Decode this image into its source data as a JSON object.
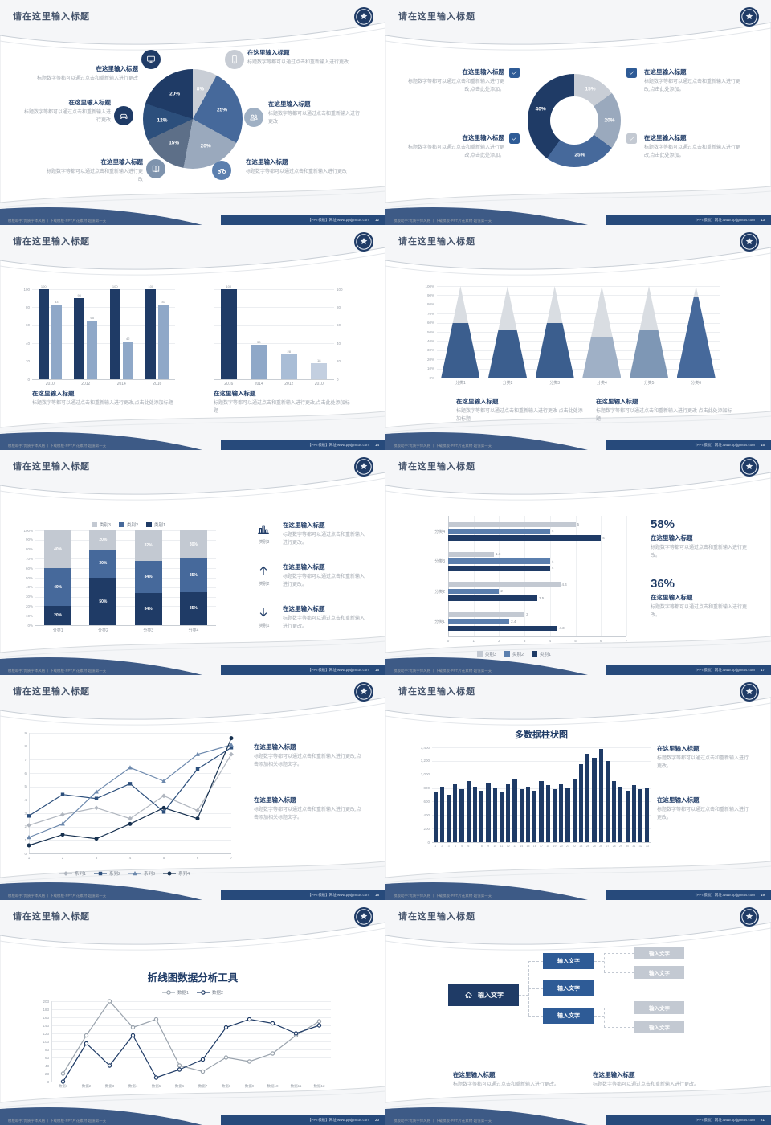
{
  "chrome": {
    "title": "请在这里输入标题",
    "footer_left": "模板助手:优质字体风格 丨下载模板·PPT片花素材·超值第一支",
    "footer_right": "【PPT模板】网址:www.pptjgmtus.com",
    "page_numbers": [
      "12",
      "13",
      "14",
      "15",
      "16",
      "17",
      "18",
      "19",
      "20",
      "21"
    ]
  },
  "palette": {
    "navy": "#1f3b66",
    "steel": "#46699b",
    "light_steel": "#8fa8c8",
    "gray": "#c3c9d2",
    "text_gray": "#a4aab2"
  },
  "slides": [
    {
      "id": "s1",
      "name": "pie-infographic-slide",
      "items": [
        {
          "title": "在这里输入标题",
          "text": "标题数字等都可以通过点击和重新输入进行更改",
          "icon": "monitor-icon",
          "color": "#1f3b66"
        },
        {
          "title": "在这里输入标题",
          "text": "标题数字等都可以通过点击和重新输入进行更改",
          "icon": "car-icon",
          "color": "#1f3b66"
        },
        {
          "title": "在这里输入标题",
          "text": "标题数字等都可以通过点击和重新输入进行更改",
          "icon": "book-icon",
          "color": "#7e93ad"
        },
        {
          "title": "在这里输入标题",
          "text": "标题数字等都可以通过点击和重新输入进行更改",
          "icon": "phone-icon",
          "color": "#c7ccd4"
        },
        {
          "title": "在这里输入标题",
          "text": "标题数字等都可以通过点击和重新输入进行更改",
          "icon": "users-icon",
          "color": "#9fb0c4"
        },
        {
          "title": "在这里输入标题",
          "text": "标题数字等都可以通过点击和重新输入进行更改",
          "icon": "bike-icon",
          "color": "#5b7fae"
        }
      ],
      "chart_data": {
        "type": "pie",
        "values": [
          8,
          25,
          20,
          15,
          12,
          20
        ],
        "labels": [
          "8%",
          "25%",
          "20%",
          "15%",
          "12%",
          "20%"
        ],
        "colors": [
          "#c9ced6",
          "#46699b",
          "#9aa9bd",
          "#5d6f88",
          "#2c4f7c",
          "#1f3b66"
        ]
      }
    },
    {
      "id": "s2",
      "name": "donut-checklist-slide",
      "items": [
        {
          "title": "在这里输入标题",
          "text": "标题数字等都可以通过点击和重新输入进行更改,点击此处添加。",
          "check_color": "#2e5b96"
        },
        {
          "title": "在这里输入标题",
          "text": "标题数字等都可以通过点击和重新输入进行更改,点击此处添加。",
          "check_color": "#2e5b96"
        },
        {
          "title": "在这里输入标题",
          "text": "标题数字等都可以通过点击和重新输入进行更改,点击此处添加。",
          "check_color": "#2e5b96"
        },
        {
          "title": "在这里输入标题",
          "text": "标题数字等都可以通过点击和重新输入进行更改,点击此处添加。",
          "check_color": "#c3c9d2"
        }
      ],
      "chart_data": {
        "type": "donut",
        "values": [
          15,
          20,
          25,
          40
        ],
        "labels": [
          "15%",
          "20%",
          "25%",
          "40%"
        ],
        "colors": [
          "#c9ced6",
          "#9aa9bd",
          "#46699b",
          "#1f3b66"
        ]
      }
    },
    {
      "id": "s3",
      "name": "dual-bar-chart-slide",
      "sections": [
        {
          "title": "在这里输入标题",
          "text": "标题数字等都可以通过点击和重新输入进行更改,点击此处添加标题"
        },
        {
          "title": "在这里输入标题",
          "text": "标题数字等都可以通过点击和重新输入进行更改,点击此处添加标题"
        }
      ],
      "chart_data": [
        {
          "type": "bar",
          "categories": [
            "2010",
            "2012",
            "2014",
            "2016"
          ],
          "series": [
            {
              "name": "系列1",
              "color": "#1f3b66",
              "values": [
                100,
                90,
                100,
                100
              ]
            },
            {
              "name": "系列2",
              "color": "#8fa8c8",
              "values": [
                83,
                65,
                42,
                83
              ]
            }
          ],
          "ylim": [
            0,
            100
          ],
          "yticks": [
            0,
            20,
            40,
            60,
            80,
            100
          ]
        },
        {
          "type": "bar",
          "categories": [
            "2016",
            "2014",
            "2012",
            "2010"
          ],
          "values": [
            100,
            38,
            28,
            18
          ],
          "colors": [
            "#1f3b66",
            "#8fa8c8",
            "#a9bdd6",
            "#c3cfe0"
          ],
          "ylim": [
            0,
            100
          ],
          "yticks": [
            0,
            20,
            40,
            60,
            80,
            100
          ]
        }
      ]
    },
    {
      "id": "s4",
      "name": "pyramid-chart-slide",
      "sections": [
        {
          "title": "在这里输入标题",
          "text": "标题数字等都可以通过点击和重新输入进行更改 点击此处添加标题"
        },
        {
          "title": "在这里输入标题",
          "text": "标题数字等都可以通过点击和重新输入进行更改 点击此处添加标题"
        }
      ],
      "chart_data": {
        "type": "pyramid",
        "categories": [
          "分类1",
          "分类2",
          "分类3",
          "分类4",
          "分类5",
          "分类6"
        ],
        "fill_pct": [
          60,
          52,
          60,
          45,
          52,
          88
        ],
        "fill_colors": [
          "#3b5e8e",
          "#3b5e8e",
          "#3b5e8e",
          "#9fb0c6",
          "#7e97b5",
          "#46699b"
        ],
        "base_color": "#d9dde2",
        "yticks": [
          "0%",
          "10%",
          "20%",
          "30%",
          "40%",
          "50%",
          "60%",
          "70%",
          "80%",
          "90%",
          "100%"
        ]
      }
    },
    {
      "id": "s5",
      "name": "stacked-bar-slide",
      "legend": [
        "类别3",
        "类别2",
        "类别1"
      ],
      "items": [
        {
          "label": "类别3",
          "icon": "chart-icon",
          "title": "在这里输入标题",
          "text": "标题数字等都可以通过点击和重新输入进行更改。"
        },
        {
          "label": "类别2",
          "icon": "arrow-up-icon",
          "title": "在这里输入标题",
          "text": "标题数字等都可以通过点击和重新输入进行更改。"
        },
        {
          "label": "类别1",
          "icon": "arrow-down-icon",
          "title": "在这里输入标题",
          "text": "标题数字等都可以通过点击和重新输入进行更改。"
        }
      ],
      "chart_data": {
        "type": "stacked-bar",
        "categories": [
          "分类1",
          "分类2",
          "分类3",
          "分类4"
        ],
        "series": [
          {
            "name": "类别1",
            "color": "#1f3b66",
            "values": [
              20,
              50,
              34,
              35
            ]
          },
          {
            "name": "类别2",
            "color": "#46699b",
            "values": [
              40,
              30,
              34,
              35
            ]
          },
          {
            "name": "类别3",
            "color": "#c3c9d2",
            "values": [
              40,
              20,
              32,
              30
            ]
          }
        ],
        "yticks": [
          "0%",
          "10%",
          "20%",
          "30%",
          "40%",
          "50%",
          "60%",
          "70%",
          "80%",
          "90%",
          "100%"
        ]
      }
    },
    {
      "id": "s6",
      "name": "hbar-stats-slide",
      "legend": [
        "类别3",
        "类别2",
        "类别1"
      ],
      "stats": [
        {
          "value": "58%",
          "title": "在这里输入标题",
          "text": "标题数字等都可以通过点击和重新输入进行更改。"
        },
        {
          "value": "36%",
          "title": "在这里输入标题",
          "text": "标题数字等都可以通过点击和重新输入进行更改。"
        }
      ],
      "chart_data": {
        "type": "hbar",
        "categories": [
          "分类1",
          "分类2",
          "分类3",
          "分类4"
        ],
        "series": [
          {
            "name": "类别1",
            "color": "#1f3b66",
            "values": [
              4.3,
              3.5,
              4,
              6
            ]
          },
          {
            "name": "类别2",
            "color": "#5b7fae",
            "values": [
              2.4,
              2,
              4,
              4
            ]
          },
          {
            "name": "类别3",
            "color": "#c3c9d2",
            "values": [
              3,
              4.4,
              1.8,
              5
            ]
          }
        ],
        "xticks": [
          0,
          1,
          2,
          3,
          4,
          5,
          6,
          7
        ],
        "xlim": [
          0,
          7
        ]
      }
    },
    {
      "id": "s7",
      "name": "multi-line-chart-slide",
      "sections": [
        {
          "title": "在这里输入标题",
          "text": "标题数字等都可以通过点击和重新输入进行更改,点击添加相关标题文字。"
        },
        {
          "title": "在这里输入标题",
          "text": "标题数字等都可以通过点击和重新输入进行更改,点击添加相关标题文字。"
        }
      ],
      "chart_data": {
        "type": "line",
        "x": [
          1,
          2,
          3,
          4,
          5,
          6,
          7
        ],
        "ylim": [
          0,
          9
        ],
        "yticks": [
          0,
          1,
          2,
          3,
          4,
          5,
          6,
          7,
          8,
          9
        ],
        "series": [
          {
            "name": "系列1",
            "color": "#b0b6bf",
            "marker": "diamond",
            "values": [
              2.1,
              2.9,
              3.4,
              2.6,
              4.3,
              3.2,
              7.4
            ]
          },
          {
            "name": "系列2",
            "color": "#2c4f7c",
            "marker": "square",
            "values": [
              2.8,
              4.4,
              4.1,
              5.2,
              3.1,
              6.3,
              7.9
            ]
          },
          {
            "name": "系列3",
            "color": "#6d89ad",
            "marker": "triangle",
            "values": [
              1.2,
              2.2,
              4.6,
              6.4,
              5.4,
              7.4,
              8.1
            ]
          },
          {
            "name": "系列4",
            "color": "#16304f",
            "marker": "circle",
            "values": [
              0.6,
              1.4,
              1.1,
              2.2,
              3.4,
              2.6,
              8.6
            ]
          }
        ]
      }
    },
    {
      "id": "s8",
      "name": "multi-column-chart-slide",
      "sections": [
        {
          "title": "在这里输入标题",
          "text": "标题数字等都可以通过点击和重新输入进行更改。"
        },
        {
          "title": "在这里输入标题",
          "text": "标题数字等都可以通过点击和重新输入进行更改。"
        }
      ],
      "chart_data": {
        "type": "column",
        "title": "多数据柱状图",
        "color": "#1f3b66",
        "ylim": [
          0,
          1400
        ],
        "yticks": [
          "0",
          "200",
          "400",
          "600",
          "800",
          "1,000",
          "1,200",
          "1,400"
        ],
        "x_labels": [
          "1",
          "2",
          "3",
          "4",
          "5",
          "6",
          "7",
          "8",
          "9",
          "10",
          "11",
          "12",
          "13",
          "14",
          "15",
          "16",
          "17",
          "18",
          "19",
          "20",
          "21",
          "22",
          "23",
          "24",
          "25",
          "26",
          "27",
          "28",
          "29",
          "30",
          "31",
          "32",
          "33"
        ],
        "values": [
          750,
          820,
          700,
          860,
          780,
          900,
          820,
          760,
          880,
          800,
          740,
          860,
          920,
          780,
          820,
          760,
          900,
          840,
          780,
          860,
          800,
          920,
          1150,
          1300,
          1250,
          1380,
          1200,
          900,
          820,
          760,
          840,
          780,
          800
        ]
      }
    },
    {
      "id": "s9",
      "name": "line-analysis-slide",
      "chart_data": {
        "type": "line",
        "title": "折线图数据分析工具",
        "ylim": [
          3,
          203
        ],
        "categories": [
          "数据1",
          "数据2",
          "数据3",
          "数据4",
          "数据5",
          "数据6",
          "数据7",
          "数据8",
          "数据9",
          "数据10",
          "数据11",
          "数据12"
        ],
        "yticks": [
          203,
          183,
          163,
          143,
          123,
          103,
          83,
          63,
          43,
          23,
          3
        ],
        "series": [
          {
            "name": "数据1",
            "color": "#9aa3ad",
            "marker": "circle",
            "values": [
              23,
              118,
              203,
              138,
              158,
              43,
              28,
              63,
              53,
              73,
              118,
              153
            ]
          },
          {
            "name": "数据2",
            "color": "#1f3b66",
            "marker": "circle",
            "values": [
              3,
              98,
              43,
              118,
              13,
              33,
              58,
              138,
              158,
              148,
              123,
              143
            ]
          }
        ]
      }
    },
    {
      "id": "s10",
      "name": "hierarchy-diagram-slide",
      "root": {
        "label": "输入文字",
        "icon": "home-icon",
        "color": "#1f3b66"
      },
      "branches": [
        {
          "label": "输入文字"
        },
        {
          "label": "输入文字"
        },
        {
          "label": "输入文字"
        }
      ],
      "leaves": [
        {
          "label": "输入文字"
        },
        {
          "label": "输入文字"
        },
        {
          "label": "输入文字"
        },
        {
          "label": "输入文字"
        }
      ],
      "branch_color": "#2e5b96",
      "leaf_color": "#c3c9d2",
      "sections": [
        {
          "title": "在这里输入标题",
          "text": "标题数字等都可以通过点击和重新输入进行更改。"
        },
        {
          "title": "在这里输入标题",
          "text": "标题数字等都可以通过点击和重新输入进行更改。"
        }
      ]
    }
  ]
}
